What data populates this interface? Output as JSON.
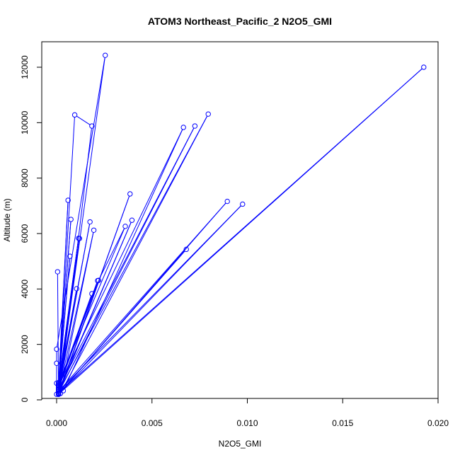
{
  "chart_data": {
    "type": "line",
    "title": "ATOM3 Northeast_Pacific_2 N2O5_GMI",
    "xlabel": "N2O5_GMI",
    "ylabel": "Altitude (m)",
    "xlim": [
      0,
      0.02
    ],
    "ylim": [
      0,
      12800
    ],
    "x_ticks": [
      0,
      0.005,
      0.01,
      0.015,
      0.02
    ],
    "x_tick_labels": [
      "0.000",
      "0.005",
      "0.010",
      "0.015",
      "0.020"
    ],
    "y_ticks": [
      0,
      2000,
      4000,
      6000,
      8000,
      10000,
      12000
    ],
    "y_tick_labels": [
      "0",
      "2000",
      "4000",
      "6000",
      "8000",
      "10000",
      "12000"
    ],
    "grid": false,
    "legend": "none",
    "series": [
      {
        "color": "#0000ff",
        "marker": "open-circle",
        "points": [
          {
            "x": 0.0,
            "y": 200
          },
          {
            "x": 0.0,
            "y": 600
          },
          {
            "x": 0.0,
            "y": 1320
          },
          {
            "x": 0.0,
            "y": 1830
          },
          {
            "x": 0.00255,
            "y": 12430
          },
          {
            "x": 0.0001,
            "y": 220
          },
          {
            "x": 0.00195,
            "y": 6120
          },
          {
            "x": 0.0002,
            "y": 230
          },
          {
            "x": 0.00795,
            "y": 10310
          },
          {
            "x": 0.0001,
            "y": 300
          },
          {
            "x": 0.0001,
            "y": 310
          },
          {
            "x": 0.00095,
            "y": 10280
          },
          {
            "x": 0.00185,
            "y": 9880
          },
          {
            "x": 0.0002,
            "y": 440
          },
          {
            "x": 0.00035,
            "y": 330
          },
          {
            "x": 0.00665,
            "y": 9830
          },
          {
            "x": 0.0001,
            "y": 500
          },
          {
            "x": 0.0001,
            "y": 400
          },
          {
            "x": 0.00725,
            "y": 9880
          },
          {
            "x": 0.0001,
            "y": 250
          },
          {
            "x": 0.01925,
            "y": 12000
          },
          {
            "x": 0.0001,
            "y": 200
          },
          {
            "x": 0.0068,
            "y": 5430
          },
          {
            "x": 0.0001,
            "y": 200
          },
          {
            "x": 0.00895,
            "y": 7160
          },
          {
            "x": 0.0001,
            "y": 300
          },
          {
            "x": 0.00975,
            "y": 7060
          },
          {
            "x": 0.0001,
            "y": 200
          },
          {
            "x": 0.00385,
            "y": 7430
          },
          {
            "x": 0.0001,
            "y": 250
          },
          {
            "x": 0.00395,
            "y": 6480
          },
          {
            "x": 0.0001,
            "y": 300
          },
          {
            "x": 0.0001,
            "y": 620
          },
          {
            "x": 0.0036,
            "y": 6260
          },
          {
            "x": 0.0022,
            "y": 4310
          },
          {
            "x": 0.0001,
            "y": 500
          },
          {
            "x": 0.00185,
            "y": 3830
          },
          {
            "x": 0.0001,
            "y": 380
          },
          {
            "x": 0.00105,
            "y": 4010
          },
          {
            "x": 0.0001,
            "y": 400
          },
          {
            "x": 0.0007,
            "y": 5180
          },
          {
            "x": 0.0001,
            "y": 530
          },
          {
            "x": 0.00115,
            "y": 5830
          },
          {
            "x": 0.0001,
            "y": 560
          },
          {
            "x": 0.00075,
            "y": 6510
          },
          {
            "x": 0.0001,
            "y": 600
          },
          {
            "x": 0.0006,
            "y": 7200
          },
          {
            "x": 0.0001,
            "y": 400
          },
          {
            "x": 0.00215,
            "y": 4300
          },
          {
            "x": 0.0001,
            "y": 450
          },
          {
            "x": 0.0012,
            "y": 5820
          },
          {
            "x": 0.0001,
            "y": 350
          },
          {
            "x": 0.00175,
            "y": 6420
          },
          {
            "x": 0.0001,
            "y": 250
          },
          {
            "x": 5e-05,
            "y": 4620
          }
        ]
      }
    ]
  }
}
